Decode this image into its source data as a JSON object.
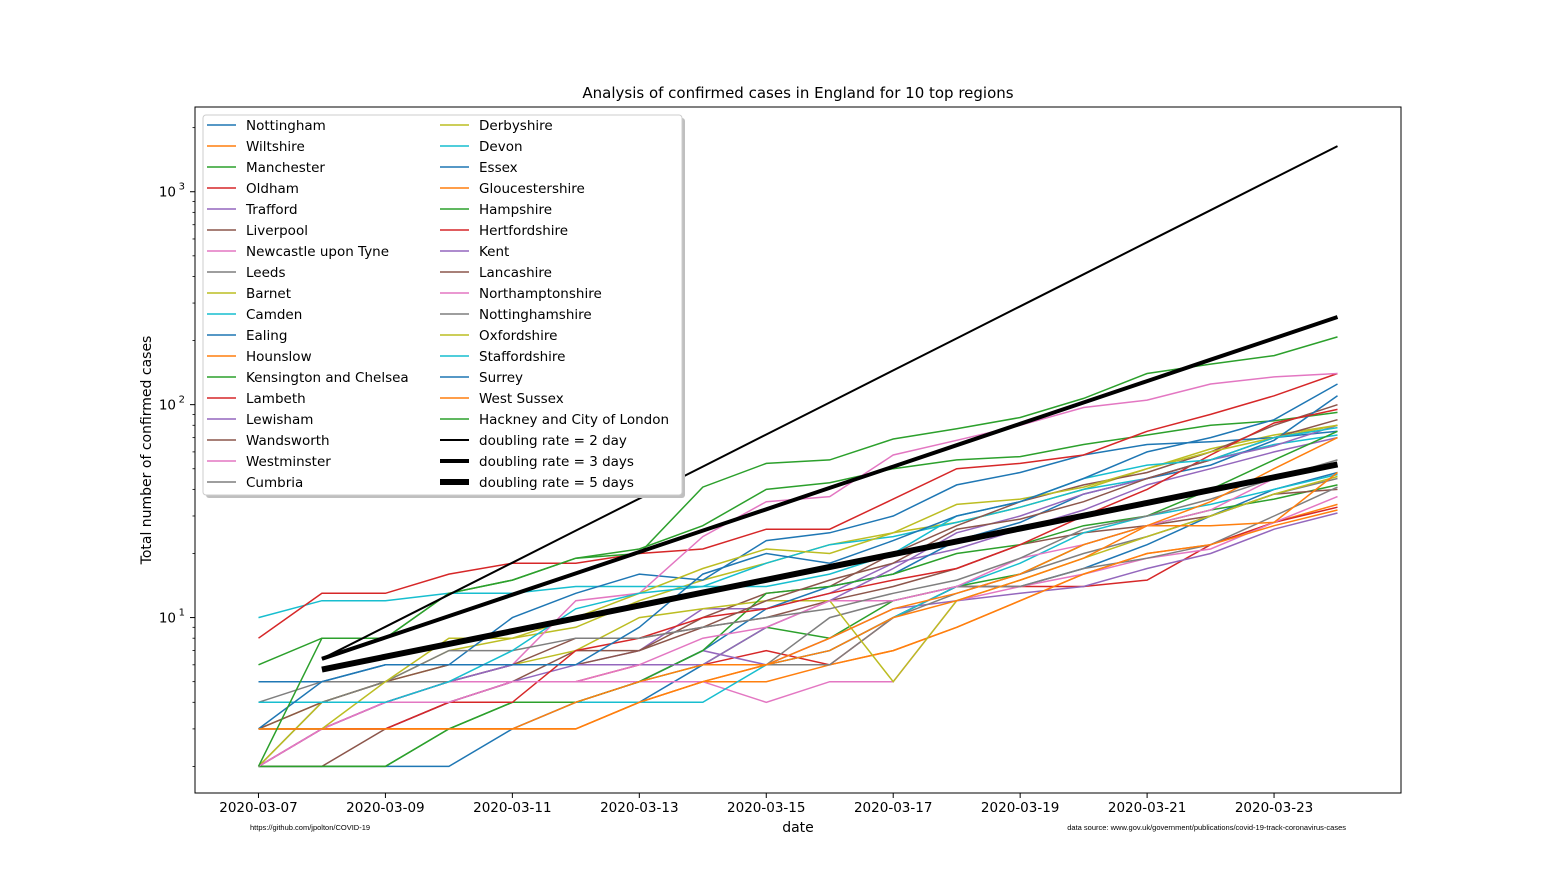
{
  "chart_data": {
    "type": "line",
    "title": "Analysis of confirmed cases in England for 10 top regions",
    "xlabel": "date",
    "ylabel": "Total number of confirmed cases",
    "yscale": "log",
    "ylim": [
      1.5,
      2500
    ],
    "xlim": [
      "2020-03-06",
      "2020-03-25"
    ],
    "grid": false,
    "legend_placement": "top-left",
    "legend_columns": 2,
    "credits": {
      "left": "https://github.com/jpolton/COVID-19",
      "right": "data source: www.gov.uk/government/publications/covid-19-track-coronavirus-cases"
    },
    "x_ticks": [
      "2020-03-07",
      "2020-03-09",
      "2020-03-11",
      "2020-03-13",
      "2020-03-15",
      "2020-03-17",
      "2020-03-19",
      "2020-03-21",
      "2020-03-23"
    ],
    "y_ticks": [
      {
        "value": 10,
        "base": "10",
        "exp": "1"
      },
      {
        "value": 100,
        "base": "10",
        "exp": "2"
      },
      {
        "value": 1000,
        "base": "10",
        "exp": "3"
      }
    ],
    "dates": [
      "2020-03-07",
      "2020-03-08",
      "2020-03-09",
      "2020-03-10",
      "2020-03-11",
      "2020-03-12",
      "2020-03-13",
      "2020-03-14",
      "2020-03-15",
      "2020-03-16",
      "2020-03-17",
      "2020-03-18",
      "2020-03-19",
      "2020-03-20",
      "2020-03-21",
      "2020-03-22",
      "2020-03-23",
      "2020-03-24"
    ],
    "series": [
      {
        "name": "Nottingham",
        "color": "#1f77b4",
        "values": [
          2,
          2,
          2,
          2,
          3,
          4,
          4,
          6,
          6,
          7,
          10,
          14,
          14,
          17,
          22,
          30,
          40,
          48
        ]
      },
      {
        "name": "Wiltshire",
        "color": "#ff7f0e",
        "values": [
          3,
          3,
          3,
          3,
          3,
          3,
          4,
          5,
          5,
          6,
          7,
          9,
          12,
          16,
          20,
          22,
          28,
          34
        ]
      },
      {
        "name": "Manchester",
        "color": "#2ca02c",
        "values": [
          2,
          2,
          2,
          3,
          4,
          4,
          5,
          6,
          9,
          8,
          12,
          14,
          16,
          22,
          27,
          32,
          36,
          42
        ]
      },
      {
        "name": "Oldham",
        "color": "#d62728",
        "values": [
          2,
          3,
          3,
          4,
          5,
          5,
          6,
          6,
          7,
          6,
          10,
          14,
          14,
          14,
          15,
          22,
          28,
          33
        ]
      },
      {
        "name": "Trafford",
        "color": "#9467bd",
        "values": [
          2,
          3,
          4,
          5,
          5,
          5,
          5,
          7,
          6,
          8,
          11,
          12,
          13,
          14,
          17,
          20,
          26,
          31
        ]
      },
      {
        "name": "Liverpool",
        "color": "#8c564b",
        "values": [
          2,
          2,
          3,
          4,
          5,
          7,
          7,
          9,
          10,
          12,
          14,
          17,
          22,
          25,
          27,
          30,
          38,
          40
        ]
      },
      {
        "name": "Newcastle upon Tyne",
        "color": "#e377c2",
        "values": [
          2,
          3,
          4,
          5,
          5,
          5,
          5,
          5,
          4,
          5,
          5,
          12,
          14,
          16,
          19,
          21,
          28,
          37
        ]
      },
      {
        "name": "Leeds",
        "color": "#7f7f7f",
        "values": [
          2,
          4,
          4,
          5,
          6,
          6,
          6,
          6,
          6,
          10,
          12,
          14,
          14,
          17,
          19,
          22,
          30,
          41
        ]
      },
      {
        "name": "Barnet",
        "color": "#bcbd22",
        "values": [
          3,
          4,
          5,
          7,
          8,
          9,
          12,
          15,
          18,
          22,
          25,
          28,
          33,
          40,
          50,
          62,
          72,
          80
        ]
      },
      {
        "name": "Camden",
        "color": "#17becf",
        "values": [
          10,
          12,
          12,
          13,
          13,
          14,
          14,
          14,
          18,
          22,
          24,
          28,
          33,
          40,
          45,
          55,
          65,
          72
        ]
      },
      {
        "name": "Ealing",
        "color": "#1f77b4",
        "values": [
          5,
          5,
          6,
          6,
          10,
          13,
          16,
          15,
          23,
          25,
          30,
          42,
          48,
          58,
          65,
          67,
          70,
          75
        ]
      },
      {
        "name": "Hounslow",
        "color": "#ff7f0e",
        "values": [
          3,
          3,
          3,
          3,
          3,
          3,
          4,
          5,
          6,
          6,
          7,
          9,
          12,
          16,
          20,
          22,
          27,
          32
        ]
      },
      {
        "name": "Kensington and Chelsea",
        "color": "#2ca02c",
        "values": [
          6,
          8,
          8,
          13,
          15,
          19,
          21,
          27,
          40,
          43,
          50,
          55,
          57,
          65,
          72,
          80,
          84,
          92
        ]
      },
      {
        "name": "Lambeth",
        "color": "#d62728",
        "values": [
          8,
          13,
          13,
          16,
          18,
          18,
          20,
          21,
          26,
          26,
          36,
          50,
          53,
          58,
          75,
          90,
          110,
          140
        ]
      },
      {
        "name": "Lewisham",
        "color": "#9467bd",
        "values": [
          2,
          3,
          3,
          4,
          5,
          6,
          7,
          11,
          11,
          13,
          18,
          21,
          26,
          32,
          42,
          50,
          60,
          70
        ]
      },
      {
        "name": "Wandsworth",
        "color": "#8c564b",
        "values": [
          2,
          3,
          4,
          5,
          6,
          6,
          7,
          10,
          13,
          14,
          20,
          27,
          35,
          42,
          48,
          60,
          80,
          100
        ]
      },
      {
        "name": "Westminster",
        "color": "#e377c2",
        "values": [
          2,
          3,
          4,
          5,
          6,
          12,
          13,
          24,
          35,
          37,
          58,
          68,
          80,
          97,
          105,
          125,
          135,
          140
        ]
      },
      {
        "name": "Cumbria",
        "color": "#7f7f7f",
        "values": [
          4,
          5,
          5,
          5,
          6,
          6,
          6,
          6,
          6,
          6,
          10,
          13,
          16,
          20,
          24,
          30,
          38,
          45
        ]
      },
      {
        "name": "Derbyshire",
        "color": "#bcbd22",
        "values": [
          2,
          4,
          5,
          6,
          6,
          7,
          10,
          11,
          12,
          12,
          5,
          12,
          15,
          19,
          24,
          30,
          38,
          46
        ]
      },
      {
        "name": "Devon",
        "color": "#17becf",
        "values": [
          4,
          4,
          4,
          4,
          4,
          4,
          4,
          4,
          6,
          7,
          10,
          14,
          18,
          25,
          30,
          34,
          40,
          47
        ]
      },
      {
        "name": "Essex",
        "color": "#1f77b4",
        "values": [
          4,
          4,
          4,
          4,
          4,
          4,
          5,
          7,
          11,
          14,
          16,
          23,
          28,
          38,
          45,
          52,
          68,
          110
        ]
      },
      {
        "name": "Gloucestershire",
        "color": "#ff7f0e",
        "values": [
          3,
          3,
          3,
          3,
          3,
          3,
          4,
          5,
          6,
          7,
          10,
          12,
          15,
          19,
          27,
          27,
          28,
          48
        ]
      },
      {
        "name": "Hampshire",
        "color": "#2ca02c",
        "values": [
          2,
          2,
          2,
          3,
          4,
          4,
          5,
          7,
          13,
          14,
          16,
          20,
          22,
          27,
          30,
          40,
          55,
          75
        ]
      },
      {
        "name": "Hertfordshire",
        "color": "#d62728",
        "values": [
          3,
          3,
          3,
          4,
          4,
          7,
          8,
          10,
          11,
          13,
          15,
          17,
          22,
          30,
          40,
          58,
          82,
          95
        ]
      },
      {
        "name": "Kent",
        "color": "#9467bd",
        "values": [
          3,
          3,
          4,
          5,
          6,
          6,
          6,
          6,
          9,
          12,
          17,
          25,
          30,
          38,
          45,
          55,
          64,
          80
        ]
      },
      {
        "name": "Lancashire",
        "color": "#8c564b",
        "values": [
          3,
          4,
          5,
          6,
          6,
          8,
          8,
          9,
          12,
          15,
          18,
          26,
          29,
          35,
          45,
          55,
          70,
          85
        ]
      },
      {
        "name": "Northamptonshire",
        "color": "#e377c2",
        "values": [
          2,
          3,
          4,
          4,
          5,
          5,
          6,
          8,
          9,
          12,
          12,
          14,
          19,
          22,
          27,
          32,
          45,
          52
        ]
      },
      {
        "name": "Nottinghamshire",
        "color": "#7f7f7f",
        "values": [
          4,
          4,
          5,
          7,
          7,
          8,
          8,
          9,
          10,
          11,
          13,
          15,
          19,
          26,
          30,
          36,
          45,
          55
        ]
      },
      {
        "name": "Oxfordshire",
        "color": "#bcbd22",
        "values": [
          3,
          3,
          5,
          8,
          8,
          10,
          13,
          17,
          21,
          20,
          25,
          34,
          36,
          41,
          50,
          60,
          70,
          80
        ]
      },
      {
        "name": "Staffordshire",
        "color": "#17becf",
        "values": [
          4,
          4,
          4,
          5,
          7,
          11,
          13,
          14,
          14,
          16,
          20,
          30,
          35,
          45,
          52,
          55,
          70,
          78
        ]
      },
      {
        "name": "Surrey",
        "color": "#1f77b4",
        "values": [
          3,
          5,
          6,
          6,
          6,
          6,
          9,
          16,
          20,
          18,
          23,
          30,
          35,
          45,
          60,
          70,
          85,
          125
        ]
      },
      {
        "name": "West Sussex",
        "color": "#ff7f0e",
        "values": [
          3,
          3,
          3,
          3,
          3,
          4,
          5,
          6,
          6,
          8,
          11,
          13,
          16,
          22,
          27,
          35,
          50,
          70
        ]
      },
      {
        "name": "Hackney and City of London",
        "color": "#2ca02c",
        "values": [
          2,
          8,
          8,
          13,
          15,
          19,
          20,
          41,
          53,
          55,
          69,
          77,
          87,
          107,
          140,
          155,
          170,
          208
        ]
      }
    ],
    "reference_lines": [
      {
        "name": "doubling rate = 2 day",
        "color": "#000000",
        "doubling_days": 2,
        "start_value": 6.4,
        "weight": "thin"
      },
      {
        "name": "doubling rate = 3 days",
        "color": "#000000",
        "doubling_days": 3,
        "start_value": 6.4,
        "weight": "medium"
      },
      {
        "name": "doubling rate = 5 days",
        "color": "#000000",
        "doubling_days": 5,
        "start_value": 5.7,
        "weight": "thick"
      }
    ]
  }
}
